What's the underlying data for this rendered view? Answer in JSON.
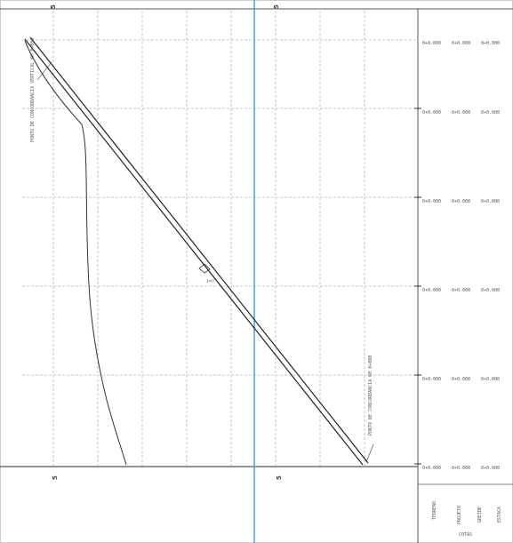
{
  "top_labels": [
    "5",
    "5"
  ],
  "bottom_labels": [
    "5",
    "5"
  ],
  "row_values": [
    [
      "0+0.000",
      "0+0.000",
      "0+0.000"
    ],
    [
      "0+0.000",
      "0+0.000",
      "0+0.000"
    ],
    [
      "0+0.000",
      "0+0.000",
      "0+0.000"
    ],
    [
      "0+0.000",
      "0+0.000",
      "0+0.000"
    ],
    [
      "0+0.000",
      "0+0.000",
      "0+0.000"
    ],
    [
      "0+0.000",
      "0+0.000",
      "0+0.000"
    ]
  ],
  "footer_columns": [
    "TERRENO",
    "PROJETO",
    "GREIDE",
    "ESTACA"
  ],
  "footer_title": "COTAS",
  "annotation_top": "PONTO DE CONCORDANCIA VERTICAL KM 0+000",
  "annotation_bottom": "PONTO DE CONCORDANCIA KM 0+000",
  "slope_label": "i=?",
  "colors": {
    "grid": "#b8b8b8",
    "axis": "#4aa3df",
    "line": "#222222"
  }
}
